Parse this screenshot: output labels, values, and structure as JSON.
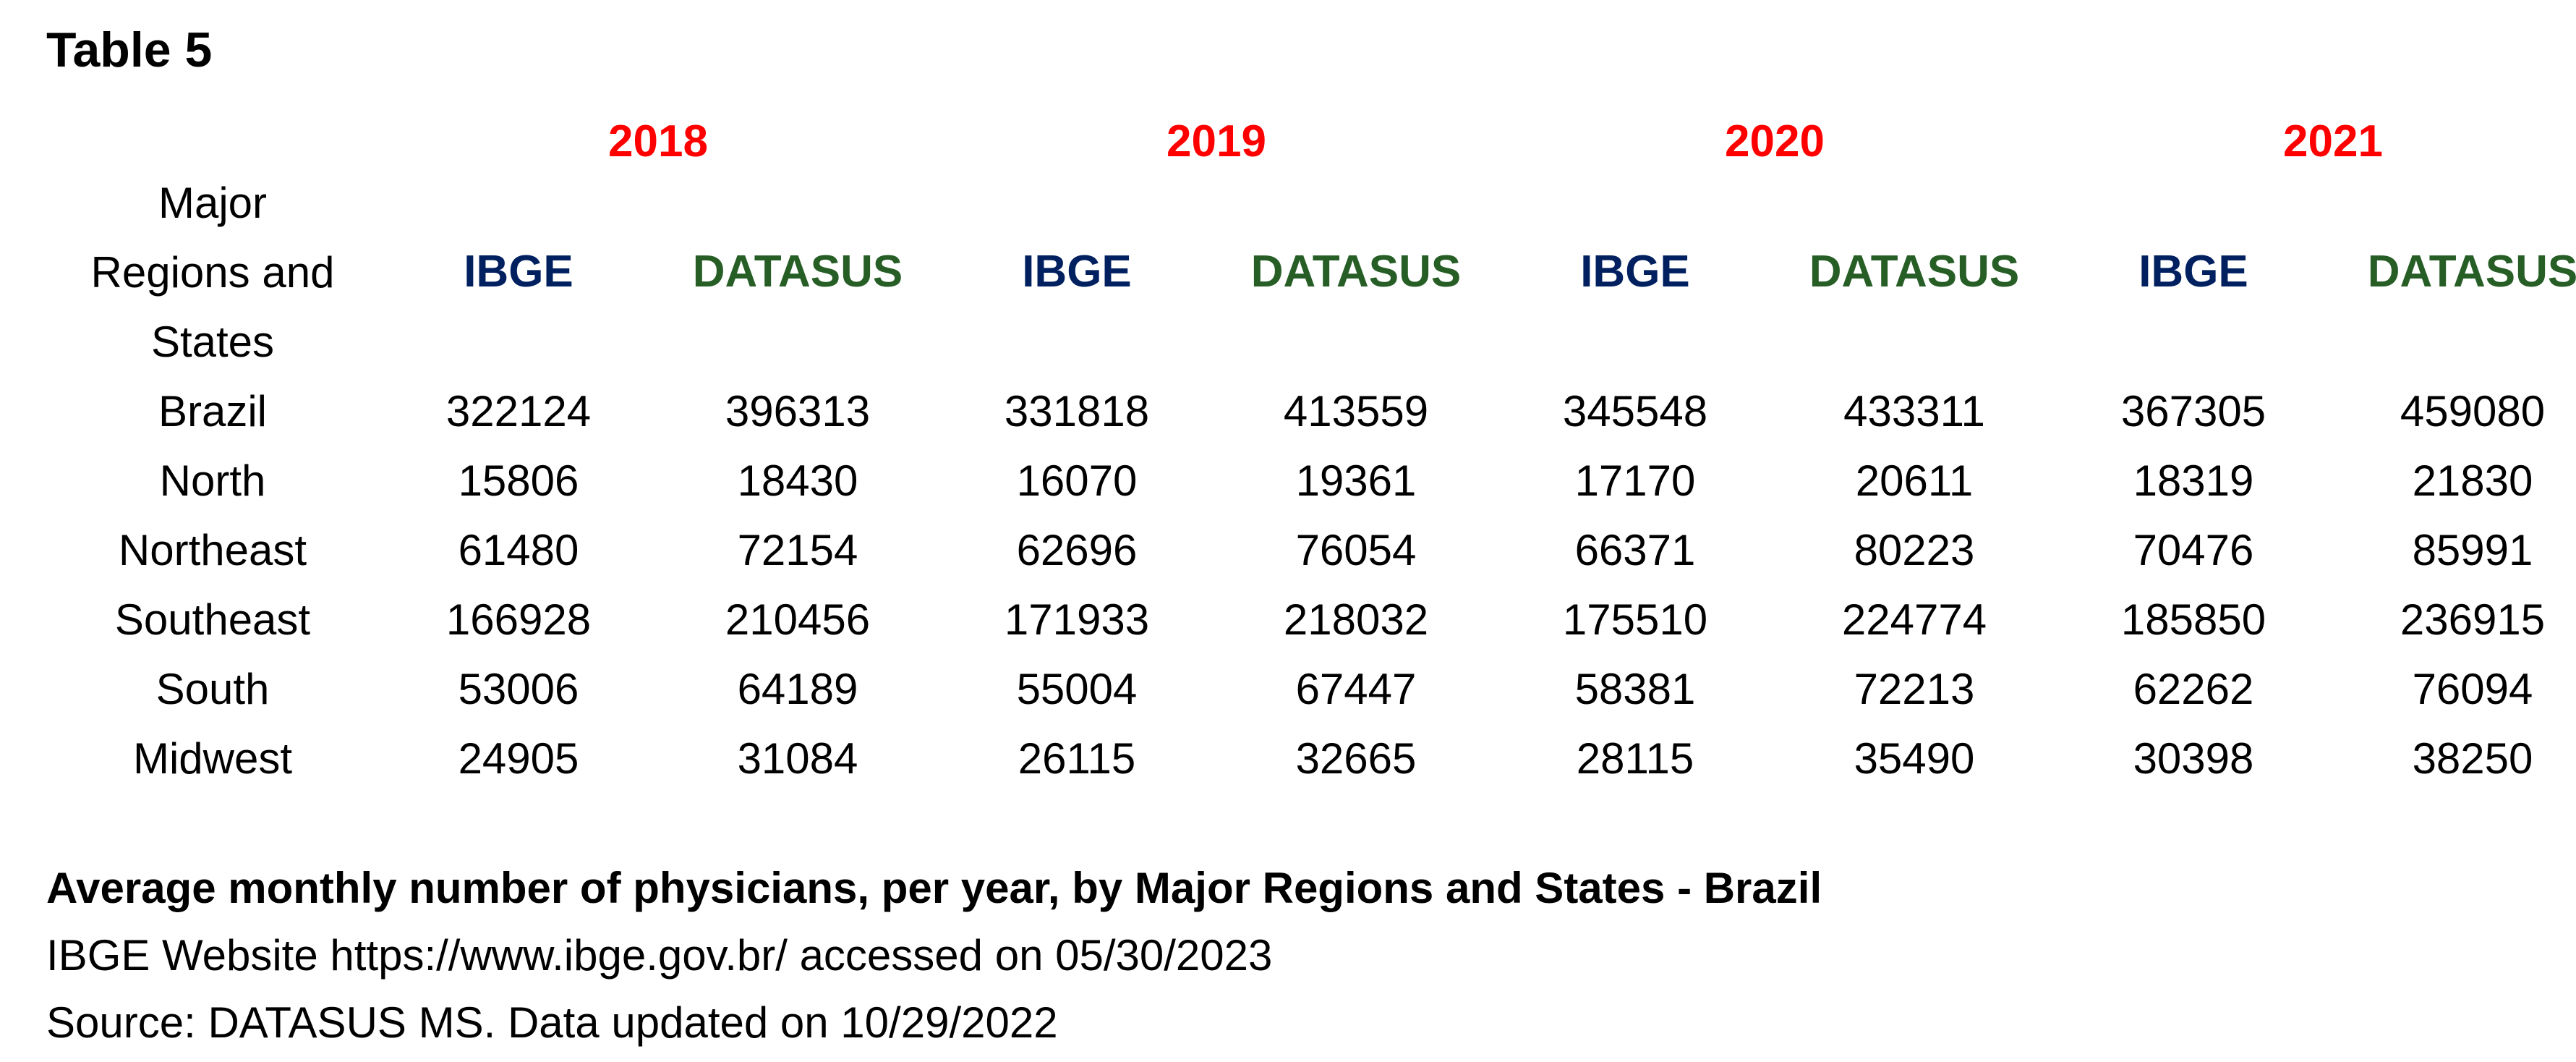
{
  "title": "Table 5",
  "colors": {
    "year": "#ff0000",
    "ibge": "#002060",
    "datasus": "#265e26",
    "text": "#000000",
    "bg": "#ffffff"
  },
  "table": {
    "years": [
      "2018",
      "2019",
      "2020",
      "2021"
    ],
    "row_header_lines": [
      "Major",
      "Regions and",
      "States"
    ],
    "source_headers": [
      "IBGE",
      "DATASUS"
    ],
    "rows": [
      {
        "label": "Brazil",
        "values": [
          "322124",
          "396313",
          "331818",
          "413559",
          "345548",
          "433311",
          "367305",
          "459080"
        ]
      },
      {
        "label": "North",
        "values": [
          "15806",
          "18430",
          "16070",
          "19361",
          "17170",
          "20611",
          "18319",
          "21830"
        ]
      },
      {
        "label": "Northeast",
        "values": [
          "61480",
          "72154",
          "62696",
          "76054",
          "66371",
          "80223",
          "70476",
          "85991"
        ]
      },
      {
        "label": "Southeast",
        "values": [
          "166928",
          "210456",
          "171933",
          "218032",
          "175510",
          "224774",
          "185850",
          "236915"
        ]
      },
      {
        "label": "South",
        "values": [
          "53006",
          "64189",
          "55004",
          "67447",
          "58381",
          "72213",
          "62262",
          "76094"
        ]
      },
      {
        "label": "Midwest",
        "values": [
          "24905",
          "31084",
          "26115",
          "32665",
          "28115",
          "35490",
          "30398",
          "38250"
        ]
      }
    ]
  },
  "caption": {
    "line1": "Average monthly number of physicians, per year, by Major Regions and States - Brazil",
    "line2": "IBGE Website https://www.ibge.gov.br/ accessed on 05/30/2023",
    "line3": "Source: DATASUS MS. Data updated on 10/29/2022"
  }
}
